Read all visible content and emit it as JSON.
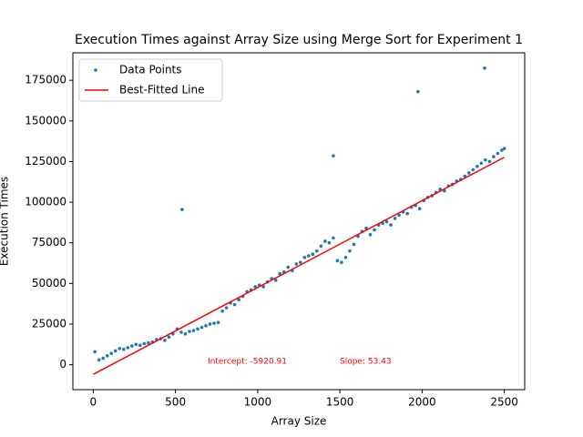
{
  "chart_data": {
    "type": "scatter",
    "title": "Execution Times against Array Size using Merge Sort for Experiment 1",
    "x_label": "Array Size",
    "y_label": "Execution Times",
    "annotations": [
      "Intercept: -5920.91",
      "Slope: 53.43"
    ],
    "xlim": [
      -124,
      2624
    ],
    "ylim": [
      -15340,
      191920
    ],
    "xticks": [
      0,
      500,
      1000,
      1500,
      2000,
      2500
    ],
    "yticks": [
      0,
      25000,
      50000,
      75000,
      100000,
      125000,
      150000,
      175000
    ],
    "legend": "upper left",
    "series": [
      {
        "name": "Data Points",
        "style": "points",
        "color": "#1f77b4",
        "x": [
          10,
          35,
          60,
          85,
          110,
          135,
          160,
          185,
          210,
          235,
          260,
          285,
          310,
          335,
          360,
          385,
          410,
          435,
          460,
          485,
          510,
          535,
          560,
          585,
          610,
          635,
          660,
          685,
          710,
          735,
          760,
          785,
          810,
          835,
          860,
          885,
          910,
          935,
          960,
          985,
          1010,
          1035,
          1060,
          1085,
          1110,
          1135,
          1160,
          1185,
          1210,
          1235,
          1260,
          1285,
          1310,
          1335,
          1360,
          1385,
          1410,
          1435,
          1460,
          1485,
          1510,
          1535,
          1560,
          1585,
          1610,
          1635,
          1660,
          1685,
          1710,
          1735,
          1760,
          1785,
          1810,
          1835,
          1860,
          1885,
          1910,
          1935,
          1960,
          1985,
          2010,
          2035,
          2060,
          2085,
          2110,
          2135,
          2160,
          2185,
          2210,
          2235,
          2260,
          2285,
          2310,
          2335,
          2360,
          2385,
          2410,
          2435,
          2460,
          2485,
          2500,
          540,
          1460,
          1975,
          2380
        ],
        "values": [
          8000,
          3000,
          4000,
          5500,
          7000,
          8500,
          10000,
          9500,
          10500,
          11500,
          12500,
          12000,
          13000,
          13500,
          14000,
          15500,
          16000,
          15000,
          17000,
          19000,
          22000,
          20000,
          19000,
          20500,
          21000,
          22000,
          23000,
          24000,
          25000,
          25500,
          26000,
          33000,
          35000,
          38000,
          37000,
          40000,
          42000,
          45000,
          46000,
          48000,
          49000,
          48000,
          51000,
          53000,
          52000,
          56000,
          57000,
          60000,
          58000,
          62000,
          63000,
          66000,
          67000,
          68000,
          70000,
          73000,
          76000,
          75000,
          78000,
          64000,
          63000,
          66000,
          70000,
          74000,
          79000,
          82000,
          84000,
          80000,
          83000,
          86000,
          87000,
          88000,
          86000,
          90000,
          92000,
          94000,
          93000,
          97000,
          98000,
          96000,
          101000,
          103000,
          104000,
          106000,
          108000,
          107000,
          110000,
          111000,
          113000,
          114000,
          116000,
          118000,
          120000,
          122000,
          124000,
          126000,
          125000,
          128000,
          130000,
          132000,
          133000,
          95500,
          128500,
          168000,
          182500
        ]
      },
      {
        "name": "Best-Fitted Line",
        "style": "line",
        "color": "#ff0000",
        "x": [
          1,
          2500
        ],
        "values": [
          -5867.48,
          127654.09
        ]
      }
    ]
  }
}
